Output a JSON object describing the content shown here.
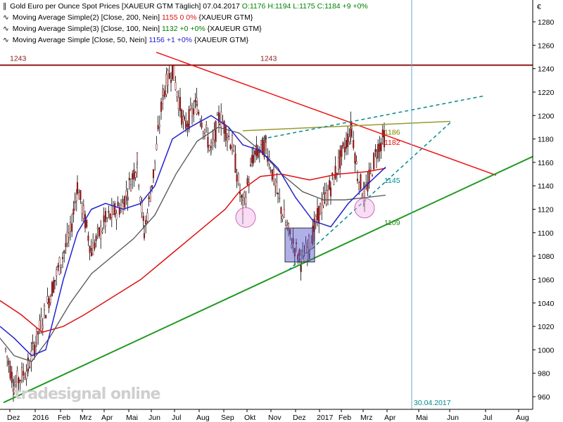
{
  "chart_data": {
    "type": "candlestick",
    "title": "Gold Euro per Ounce Spot Prices [XAUEUR GTM  Täglich] 07.04.2017",
    "ohlc_label": "O:1176 H:1194 L:1175 C:1184 +9 +0%",
    "currency_symbol": "€",
    "yaxis": {
      "ticks": [
        960,
        980,
        1000,
        1020,
        1040,
        1060,
        1080,
        1100,
        1120,
        1140,
        1160,
        1180,
        1200,
        1220,
        1240,
        1260,
        1280
      ],
      "ylim": [
        952,
        1296
      ]
    },
    "xaxis": {
      "tick_labels": [
        "Dez",
        "2016",
        "Feb",
        "Mrz",
        "Apr",
        "Mai",
        "Jun",
        "Jul",
        "Aug",
        "Sep",
        "Okt",
        "Nov",
        "Dez",
        "2017",
        "Feb",
        "Mrz",
        "Apr",
        "Mai",
        "Jun",
        "Jul",
        "Aug"
      ]
    },
    "series": [
      {
        "name": "Moving Average Simple(2) [Close, 200, Nein]",
        "value_text": "1155  0  0%",
        "color": "#dd1111"
      },
      {
        "name": "Moving Average Simple(3) [Close, 100, Nein]",
        "value_text": "1132  +0  +0%",
        "color": "#555555"
      },
      {
        "name": "Moving Average Simple [Close, 50, Nein]",
        "value_text": "1156  +1  +0%",
        "color": "#2222cc"
      }
    ],
    "series_suffix": "{XAUEUR GTM}",
    "price_path": [
      [
        "Dez",
        1000
      ],
      [
        "Dez",
        970
      ],
      [
        "2016",
        985
      ],
      [
        "2016",
        1010
      ],
      [
        "Feb",
        1060
      ],
      [
        "Feb",
        1100
      ],
      [
        "Mrz",
        1140
      ],
      [
        "Mrz",
        1085
      ],
      [
        "Apr",
        1110
      ],
      [
        "Apr",
        1125
      ],
      [
        "Mai",
        1160
      ],
      [
        "Mai",
        1100
      ],
      [
        "Jun",
        1150
      ],
      [
        "Jun",
        1220
      ],
      [
        "Jul",
        1240
      ],
      [
        "Jul",
        1190
      ],
      [
        "Aug",
        1210
      ],
      [
        "Aug",
        1170
      ],
      [
        "Sep",
        1200
      ],
      [
        "Sep",
        1175
      ],
      [
        "Okt",
        1120
      ],
      [
        "Okt",
        1165
      ],
      [
        "Nov",
        1175
      ],
      [
        "Nov",
        1130
      ],
      [
        "Dez",
        1100
      ],
      [
        "Dez",
        1075
      ],
      [
        "2017",
        1090
      ],
      [
        "2017",
        1120
      ],
      [
        "Feb",
        1140
      ],
      [
        "Feb",
        1190
      ],
      [
        "Mrz",
        1150
      ],
      [
        "Mrz",
        1130
      ],
      [
        "Apr",
        1170
      ],
      [
        "Apr",
        1184
      ]
    ],
    "annotations": [
      {
        "text": "1243",
        "color": "#8b1a1a"
      },
      {
        "text": "1243",
        "color": "#8b1a1a"
      },
      {
        "text": "1186",
        "color": "#808000"
      },
      {
        "text": "1182",
        "color": "#dd1111"
      },
      {
        "text": "1145",
        "color": "#008b8b"
      },
      {
        "text": "1109",
        "color": "#228b22"
      },
      {
        "text": "30.04.2017",
        "color": "#008b8b"
      }
    ],
    "horizontal_resistance": 1243,
    "grid": false,
    "legend_position": "top-left"
  },
  "watermark": "tradesignal online"
}
